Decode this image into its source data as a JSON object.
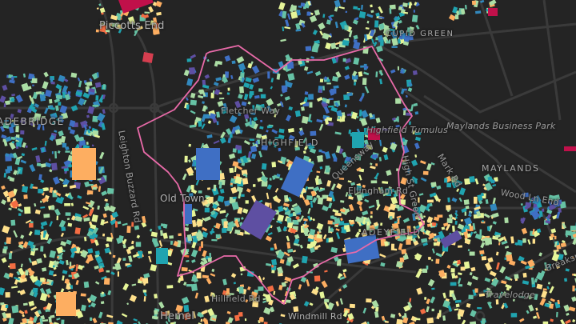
{
  "map": {
    "labels": {
      "piccotts_end": "Piccotts End",
      "cupid_green": "CUPID GREEN",
      "gadebridge": "ADEBRIDGE",
      "fletcher_way": "Fletcher Way",
      "highfield": "HIGHFIELD",
      "highfield_tumulus": "Highfield Tumulus",
      "maylands_business_park": "Maylands Business Park",
      "mark_rd": "Mark Rd",
      "maylands": "MAYLANDS",
      "wood_ln_end": "Wood Ln End",
      "leighton_buzzard_rd": "Leighton Buzzard Rd",
      "old_town": "Old Town",
      "queensway": "Queensway",
      "ellingham_rd": "Ellingham Rd",
      "high_st_green": "High St Green",
      "adeyfield": "ADEYFIELD",
      "breakspear": "Breaksp",
      "hillfield_rd": "Hillfield Rd",
      "hemel": "Hemel",
      "travelodge": "Travelodge",
      "windmill_rd": "Windmill Rd"
    },
    "colors": {
      "background": "#242424",
      "road": "#3a3a3a",
      "boundary": "#e86aa8",
      "palette": [
        "#5e4fa2",
        "#3f6fc4",
        "#3288bd",
        "#20a4b0",
        "#66c2a5",
        "#abdda4",
        "#e6f598",
        "#fee08b",
        "#fdae61",
        "#f46d43",
        "#d53e4f",
        "#c0104a"
      ]
    }
  }
}
